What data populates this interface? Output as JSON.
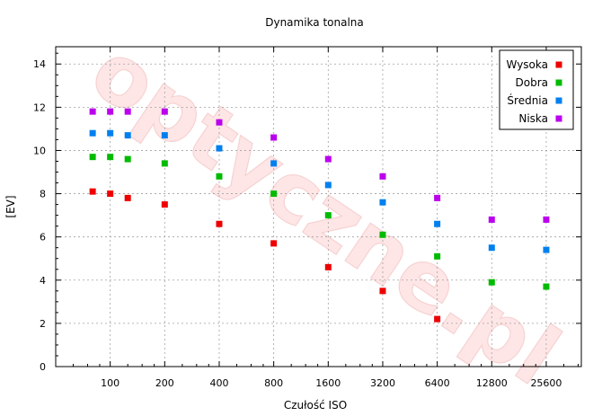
{
  "chart_data": {
    "type": "scatter",
    "title": "Dynamika tonalna",
    "xlabel": "Czułość ISO",
    "ylabel": "[EV]",
    "x_scale": "log2",
    "x_ticks": [
      100,
      200,
      400,
      800,
      1600,
      3200,
      6400,
      12800,
      25600
    ],
    "xlim": [
      50,
      40000
    ],
    "ylim": [
      0,
      14.8
    ],
    "y_ticks": [
      0,
      2,
      4,
      6,
      8,
      10,
      12,
      14
    ],
    "grid": true,
    "legend_position": "top-right",
    "series": [
      {
        "name": "Wysoka",
        "color": "#ee0000",
        "points": [
          [
            80,
            8.1
          ],
          [
            100,
            8.0
          ],
          [
            125,
            7.8
          ],
          [
            200,
            7.5
          ],
          [
            400,
            6.6
          ],
          [
            800,
            5.7
          ],
          [
            1600,
            4.6
          ],
          [
            3200,
            3.5
          ],
          [
            6400,
            2.2
          ]
        ]
      },
      {
        "name": "Dobra",
        "color": "#00bb00",
        "points": [
          [
            80,
            9.7
          ],
          [
            100,
            9.7
          ],
          [
            125,
            9.6
          ],
          [
            200,
            9.4
          ],
          [
            400,
            8.8
          ],
          [
            800,
            8.0
          ],
          [
            1600,
            7.0
          ],
          [
            3200,
            6.1
          ],
          [
            6400,
            5.1
          ],
          [
            12800,
            3.9
          ],
          [
            25600,
            3.7
          ]
        ]
      },
      {
        "name": "Średnia",
        "color": "#0080ee",
        "points": [
          [
            80,
            10.8
          ],
          [
            100,
            10.8
          ],
          [
            125,
            10.7
          ],
          [
            200,
            10.7
          ],
          [
            400,
            10.1
          ],
          [
            800,
            9.4
          ],
          [
            1600,
            8.4
          ],
          [
            3200,
            7.6
          ],
          [
            6400,
            6.6
          ],
          [
            12800,
            5.5
          ],
          [
            25600,
            5.4
          ]
        ]
      },
      {
        "name": "Niska",
        "color": "#bb00ee",
        "points": [
          [
            80,
            11.8
          ],
          [
            100,
            11.8
          ],
          [
            125,
            11.8
          ],
          [
            200,
            11.8
          ],
          [
            400,
            11.3
          ],
          [
            800,
            10.6
          ],
          [
            1600,
            9.6
          ],
          [
            3200,
            8.8
          ],
          [
            6400,
            7.8
          ],
          [
            12800,
            6.8
          ],
          [
            25600,
            6.8
          ]
        ]
      }
    ]
  },
  "watermark": {
    "text": "optyczne.pl",
    "color": "#ffe6e6"
  }
}
